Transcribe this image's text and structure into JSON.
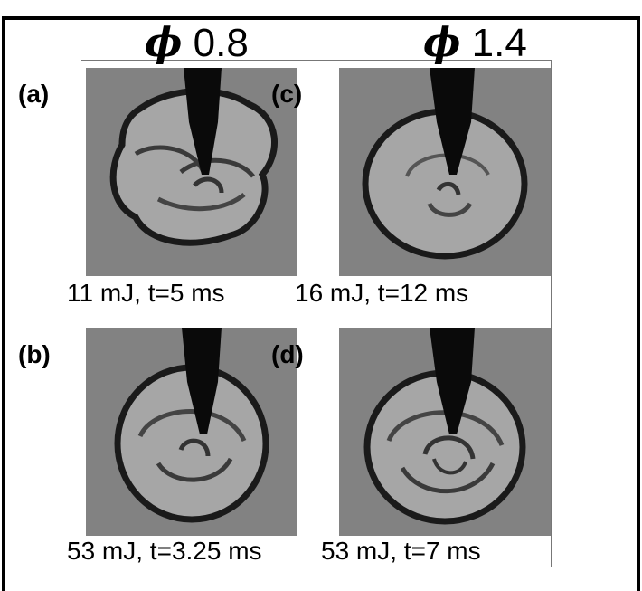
{
  "columns": [
    {
      "symbol": "ϕ",
      "value": "0.8"
    },
    {
      "symbol": "ϕ",
      "value": "1.4"
    }
  ],
  "panels": [
    {
      "label": "(a)",
      "caption": "11 mJ, t=5 ms"
    },
    {
      "label": "(b)",
      "caption": "53 mJ, t=3.25 ms"
    },
    {
      "label": "(c)",
      "caption": "16 mJ, t=12 ms"
    },
    {
      "label": "(d)",
      "caption": "53 mJ, t=7 ms"
    }
  ],
  "colors": {
    "background": "#ffffff",
    "frame": "#000000",
    "panel_bg": "#828282",
    "flame_fill": "#a6a6a6",
    "flame_edge": "#1a1a1a",
    "electrode": "#0a0a0a"
  }
}
